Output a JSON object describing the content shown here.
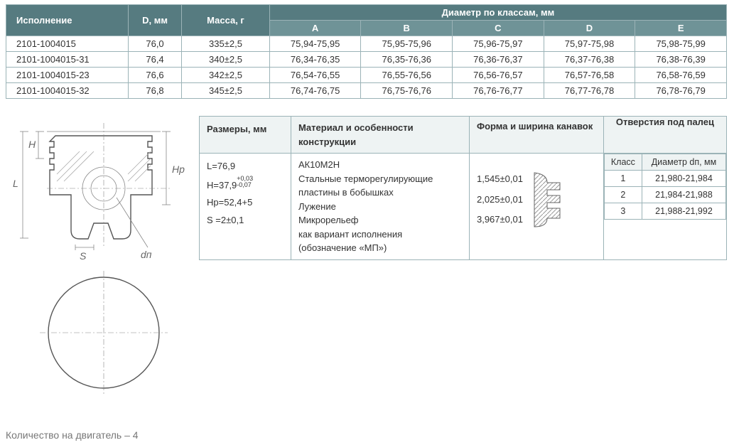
{
  "table1": {
    "headers": {
      "exec": "Исполнение",
      "d": "D, мм",
      "mass": "Масса, г",
      "diaGroup": "Диаметр по классам, мм",
      "classes": [
        "A",
        "B",
        "C",
        "D",
        "E"
      ]
    },
    "rows": [
      {
        "exec": "2101-1004015",
        "d": "76,0",
        "mass": "335±2,5",
        "cls": [
          "75,94-75,95",
          "75,95-75,96",
          "75,96-75,97",
          "75,97-75,98",
          "75,98-75,99"
        ]
      },
      {
        "exec": "2101-1004015-31",
        "d": "76,4",
        "mass": "340±2,5",
        "cls": [
          "76,34-76,35",
          "76,35-76,36",
          "76,36-76,37",
          "76,37-76,38",
          "76,38-76,39"
        ]
      },
      {
        "exec": "2101-1004015-23",
        "d": "76,6",
        "mass": "342±2,5",
        "cls": [
          "76,54-76,55",
          "76,55-76,56",
          "76,56-76,57",
          "76,57-76,58",
          "76,58-76,59"
        ]
      },
      {
        "exec": "2101-1004015-32",
        "d": "76,8",
        "mass": "345±2,5",
        "cls": [
          "76,74-76,75",
          "76,75-76,76",
          "76,76-76,77",
          "76,77-76,78",
          "76,78-76,79"
        ]
      }
    ]
  },
  "table2": {
    "headers": {
      "sizes": "Размеры, мм",
      "material": "Материал и особенности конструкции",
      "groove": "Форма и ширина канавок",
      "holes": "Отверстия под палец"
    },
    "sizes": {
      "L": "L=76,9",
      "H_base": "H=37,9",
      "H_tol_plus": "+0,03",
      "H_tol_minus": "-0,07",
      "Hp": "Hp=52,4+5",
      "S": "S =2±0,1"
    },
    "material": [
      "АК10М2Н",
      "Стальные терморегулирующие пластины в бобышках",
      "Лужение",
      "Микрорельеф",
      "как вариант исполнения (обозначение «МП»)"
    ],
    "grooves": [
      "1,545±0,01",
      "2,025±0,01",
      "3,967±0,01"
    ],
    "holes": {
      "col1": "Класс",
      "col2": "Диаметр dп, мм",
      "rows": [
        {
          "k": "1",
          "d": "21,980-21,984"
        },
        {
          "k": "2",
          "d": "21,984-21,988"
        },
        {
          "k": "3",
          "d": "21,988-21,992"
        }
      ]
    }
  },
  "drawing": {
    "L": "L",
    "H": "H",
    "Hp": "Hp",
    "S": "S",
    "dn": "dп"
  },
  "note": "Количество на двигатель – 4",
  "colors": {
    "headerBg": "#567b80",
    "subHeaderBg": "#6f9397",
    "border": "#9bb3b7",
    "lightHeader": "#eef3f3",
    "hatch": "#999"
  }
}
